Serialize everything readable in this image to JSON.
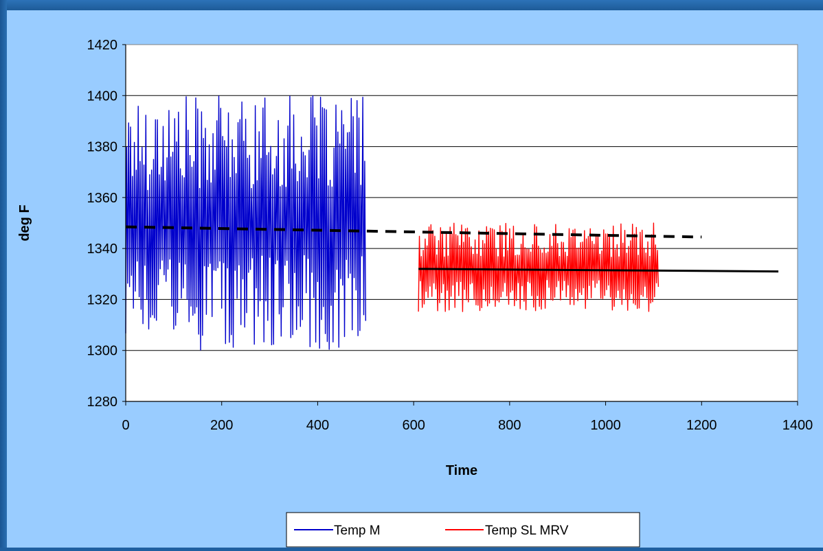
{
  "colors": {
    "plot_bg": "#ffffff",
    "chart_bg": "#99ccff",
    "frame": "#1f5fa0",
    "series_blue": "#0000cc",
    "series_red": "#ff0000",
    "trend_dashed": "#000000",
    "trend_solid": "#000000"
  },
  "chart_data": {
    "type": "line",
    "title": "",
    "xlabel": "Time",
    "ylabel": "deg F",
    "xlim": [
      0,
      1400
    ],
    "ylim": [
      1280,
      1420
    ],
    "x_ticks": [
      0,
      200,
      400,
      600,
      800,
      1000,
      1200,
      1400
    ],
    "y_ticks": [
      1280,
      1300,
      1320,
      1340,
      1360,
      1380,
      1400,
      1420
    ],
    "grid": "horizontal",
    "legend_position": "bottom",
    "series": [
      {
        "name": "Temp M",
        "color": "#0000cc",
        "x_range": [
          0,
          500
        ],
        "y_range": [
          1300,
          1400
        ],
        "description_pattern": "high-frequency oscillation",
        "mean": 1350
      },
      {
        "name": "Temp SL MRV",
        "color": "#ff0000",
        "x_range": [
          610,
          1110
        ],
        "y_range": [
          1315,
          1350
        ],
        "mean": 1332
      }
    ],
    "trendlines": [
      {
        "style": "dashed",
        "x": [
          0,
          1200
        ],
        "y": [
          1348.5,
          1344.5
        ]
      },
      {
        "style": "solid",
        "x": [
          610,
          1360
        ],
        "y": [
          1332,
          1331
        ]
      }
    ]
  }
}
